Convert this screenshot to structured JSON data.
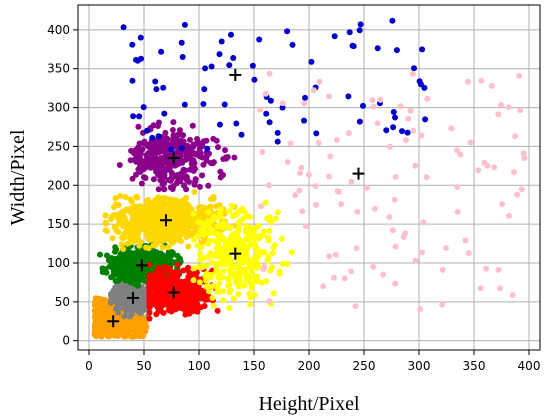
{
  "chart_data": {
    "type": "scatter",
    "title": "",
    "xlabel": "Height/Pixel",
    "ylabel": "Width/Pixel",
    "xlim": [
      -10,
      410
    ],
    "ylim": [
      -12,
      432
    ],
    "xticks": [
      0,
      50,
      100,
      150,
      200,
      250,
      300,
      350,
      400
    ],
    "yticks": [
      0,
      50,
      100,
      150,
      200,
      250,
      300,
      350,
      400
    ],
    "grid": true,
    "legend": "none",
    "clusters": [
      {
        "color": "#ff9f00",
        "center": [
          22,
          25
        ],
        "xr": [
          5,
          55
        ],
        "yr": [
          5,
          55
        ],
        "count": 500,
        "shape": "lowerleft"
      },
      {
        "color": "#808080",
        "center": [
          40,
          55
        ],
        "xr": [
          20,
          75
        ],
        "yr": [
          30,
          85
        ],
        "count": 420,
        "shape": "blob"
      },
      {
        "color": "#008000",
        "center": [
          48,
          97
        ],
        "xr": [
          10,
          100
        ],
        "yr": [
          70,
          130
        ],
        "count": 520,
        "shape": "blob"
      },
      {
        "color": "#ff0000",
        "center": [
          77,
          62
        ],
        "xr": [
          55,
          140
        ],
        "yr": [
          25,
          105
        ],
        "count": 480,
        "shape": "blob"
      },
      {
        "color": "#ffd700",
        "center": [
          70,
          155
        ],
        "xr": [
          15,
          160
        ],
        "yr": [
          115,
          198
        ],
        "count": 600,
        "shape": "blob"
      },
      {
        "color": "#ffff00",
        "center": [
          133,
          112
        ],
        "xr": [
          95,
          200
        ],
        "yr": [
          40,
          198
        ],
        "count": 320,
        "shape": "spread"
      },
      {
        "color": "#8b008b",
        "center": [
          77,
          235
        ],
        "xr": [
          28,
          150
        ],
        "yr": [
          195,
          310
        ],
        "count": 320,
        "shape": "blob"
      },
      {
        "color": "#0000cd",
        "center": [
          133,
          342
        ],
        "xr": [
          30,
          310
        ],
        "yr": [
          245,
          412
        ],
        "count": 80,
        "shape": "sparse"
      },
      {
        "color": "#ffc0cb",
        "center": [
          245,
          215
        ],
        "xr": [
          155,
          400
        ],
        "yr": [
          40,
          345
        ],
        "count": 110,
        "shape": "sparse"
      }
    ],
    "centroids": [
      [
        22,
        25
      ],
      [
        40,
        55
      ],
      [
        48,
        97
      ],
      [
        77,
        62
      ],
      [
        70,
        155
      ],
      [
        133,
        112
      ],
      [
        77,
        235
      ],
      [
        133,
        342
      ],
      [
        245,
        215
      ]
    ]
  }
}
